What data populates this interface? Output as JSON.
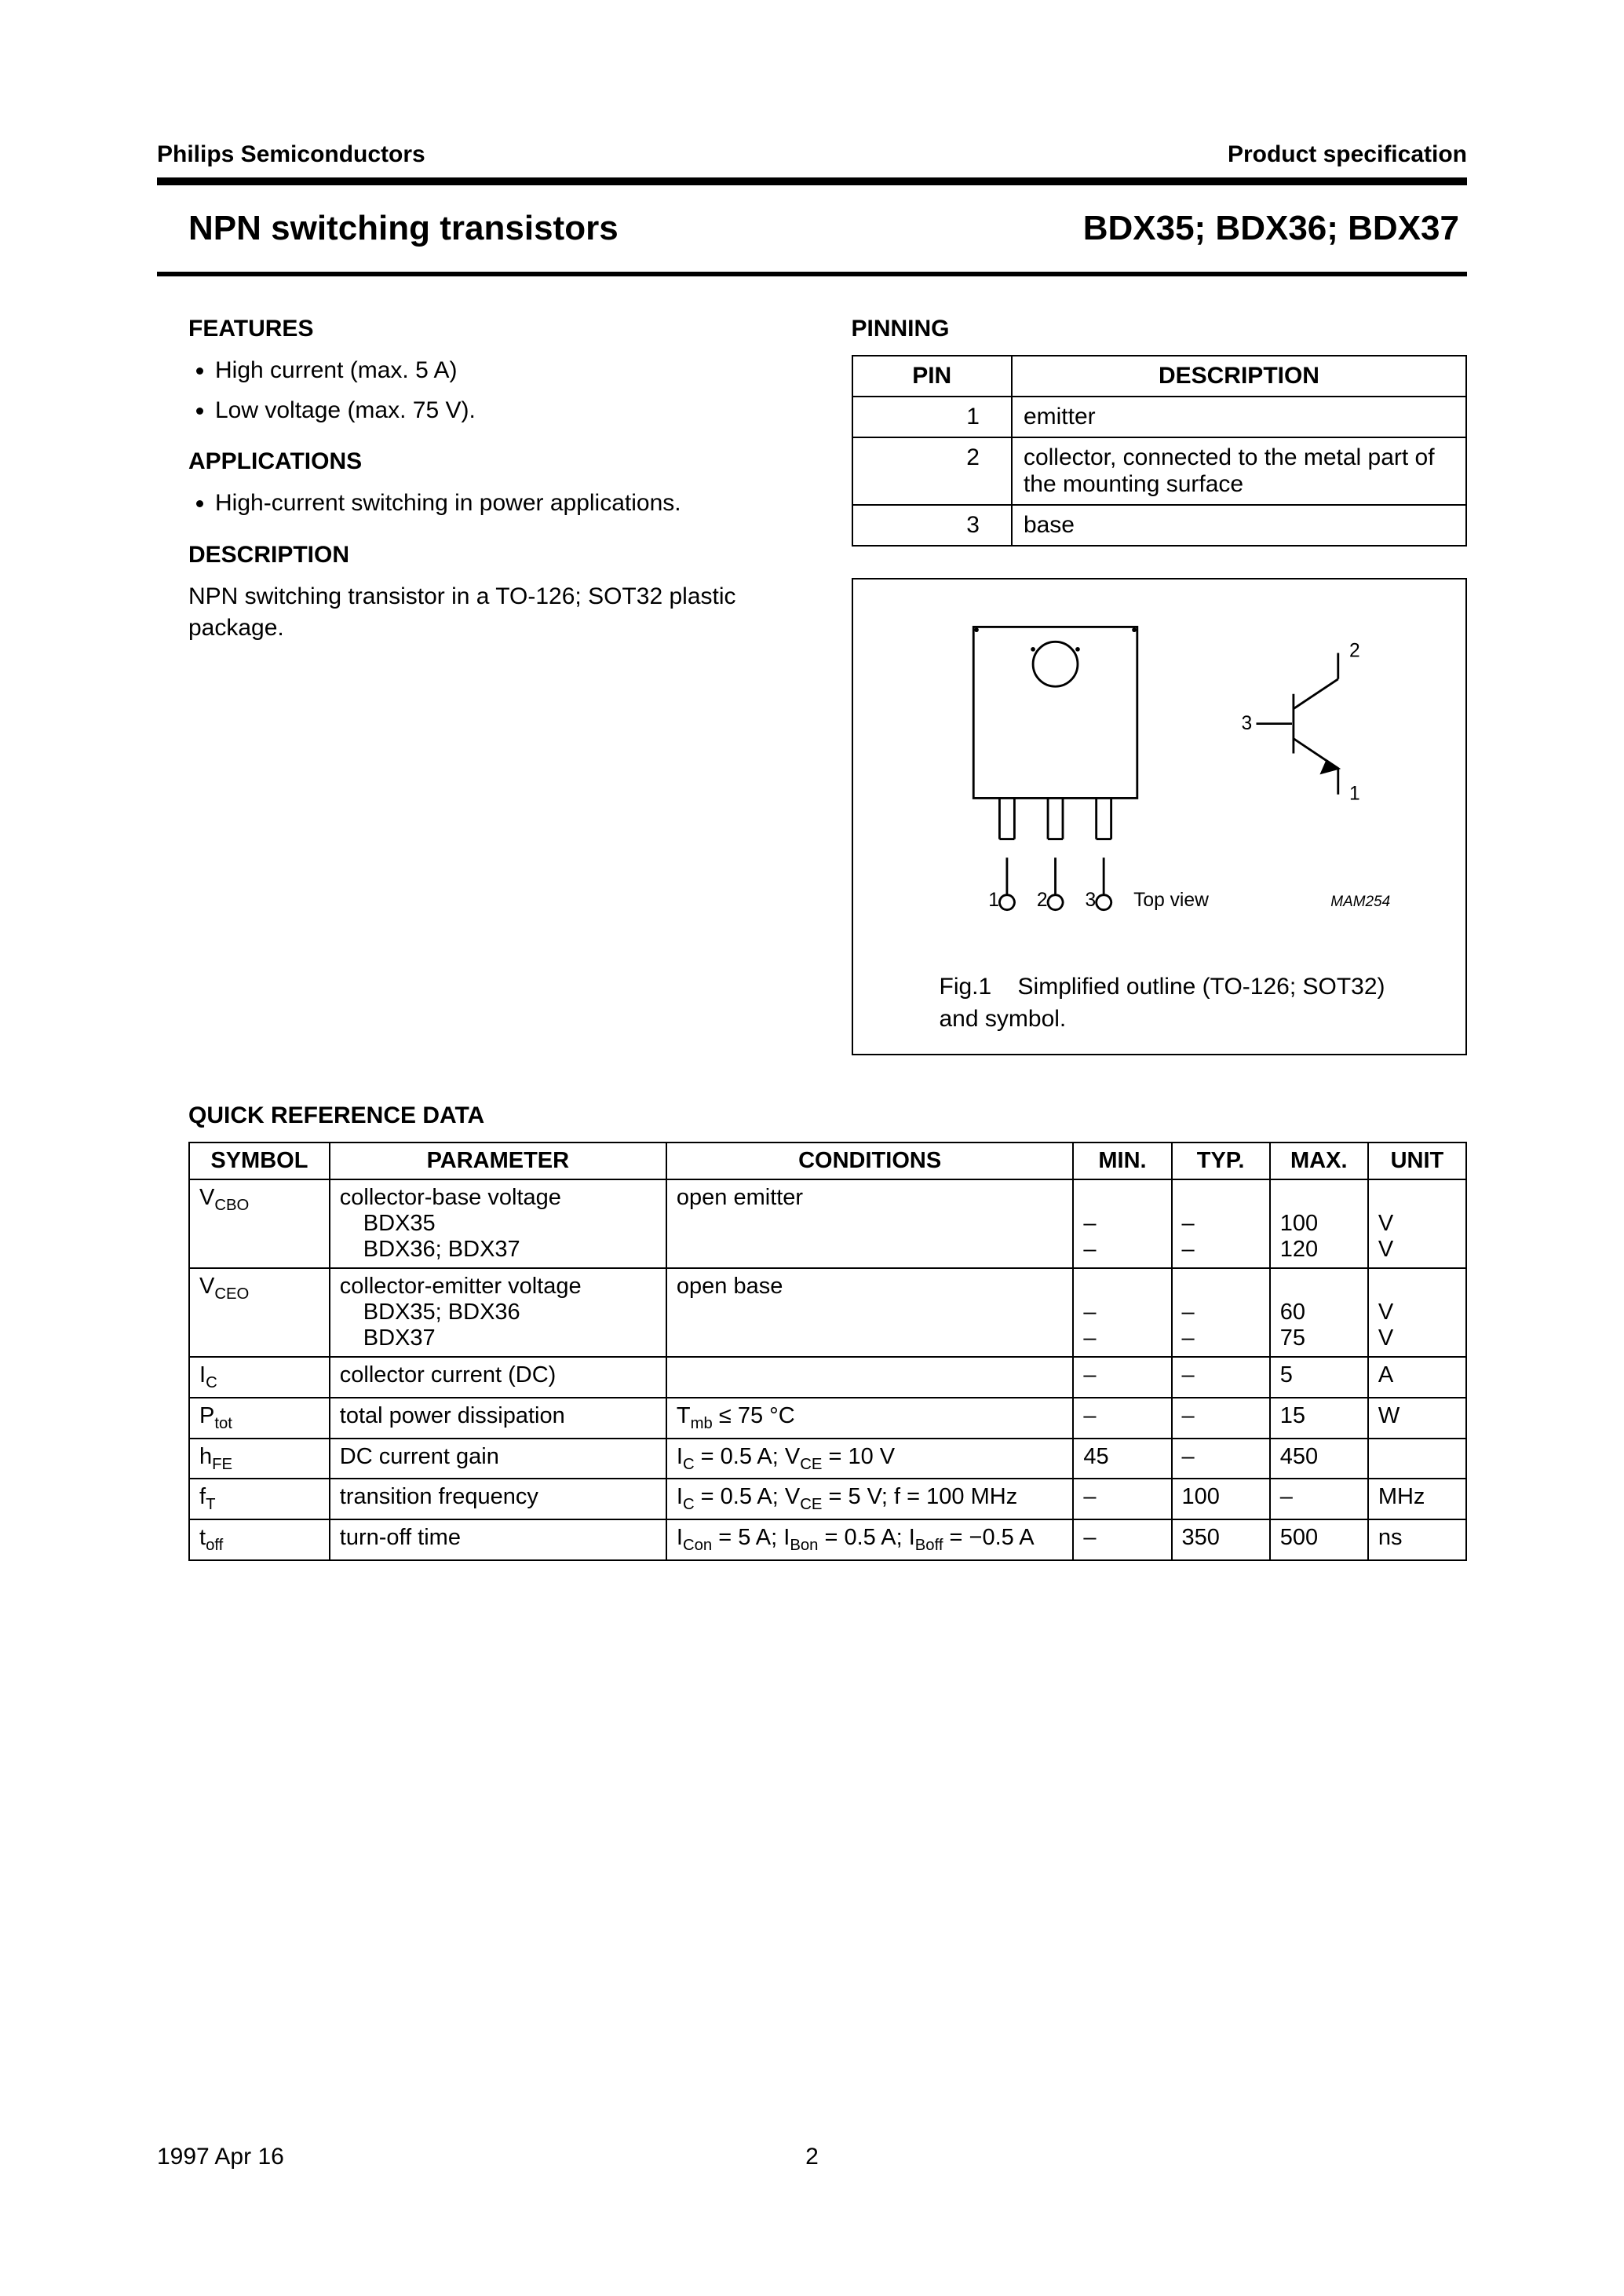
{
  "header": {
    "company": "Philips Semiconductors",
    "doc_type": "Product specification"
  },
  "title": {
    "left": "NPN switching transistors",
    "right": "BDX35; BDX36; BDX37"
  },
  "features": {
    "heading": "FEATURES",
    "items": [
      "High current (max. 5 A)",
      "Low voltage (max. 75 V)."
    ]
  },
  "applications": {
    "heading": "APPLICATIONS",
    "items": [
      "High-current switching in power applications."
    ]
  },
  "description": {
    "heading": "DESCRIPTION",
    "text": "NPN switching transistor in a TO-126; SOT32 plastic package."
  },
  "pinning": {
    "heading": "PINNING",
    "columns": [
      "PIN",
      "DESCRIPTION"
    ],
    "rows": [
      {
        "pin": "1",
        "desc": "emitter"
      },
      {
        "pin": "2",
        "desc": "collector, connected to the metal part of the mounting surface"
      },
      {
        "pin": "3",
        "desc": "base"
      }
    ]
  },
  "figure": {
    "pin_labels": [
      "1",
      "2",
      "3"
    ],
    "view_label": "Top view",
    "code": "MAM254",
    "caption_label": "Fig.1",
    "caption_text": "Simplified outline (TO-126; SOT32) and symbol.",
    "sym_labels": {
      "collector": "2",
      "base": "3",
      "emitter": "1"
    }
  },
  "quickref": {
    "heading": "QUICK REFERENCE DATA",
    "columns": [
      "SYMBOL",
      "PARAMETER",
      "CONDITIONS",
      "MIN.",
      "TYP.",
      "MAX.",
      "UNIT"
    ],
    "col_widths_pct": [
      10,
      24,
      29,
      7,
      7,
      7,
      7
    ],
    "rows": [
      {
        "symbol_html": "V<sub>CBO</sub>",
        "parameter_lines": [
          "collector-base voltage",
          "BDX35",
          "BDX36; BDX37"
        ],
        "conditions_html": "open emitter",
        "value_lines": [
          {
            "min": "",
            "typ": "",
            "max": "",
            "unit": ""
          },
          {
            "min": "–",
            "typ": "–",
            "max": "100",
            "unit": "V"
          },
          {
            "min": "–",
            "typ": "–",
            "max": "120",
            "unit": "V"
          }
        ]
      },
      {
        "symbol_html": "V<sub>CEO</sub>",
        "parameter_lines": [
          "collector-emitter voltage",
          "BDX35; BDX36",
          "BDX37"
        ],
        "conditions_html": "open base",
        "value_lines": [
          {
            "min": "",
            "typ": "",
            "max": "",
            "unit": ""
          },
          {
            "min": "–",
            "typ": "–",
            "max": "60",
            "unit": "V"
          },
          {
            "min": "–",
            "typ": "–",
            "max": "75",
            "unit": "V"
          }
        ]
      },
      {
        "symbol_html": "I<sub>C</sub>",
        "parameter_lines": [
          "collector current (DC)"
        ],
        "conditions_html": "",
        "value_lines": [
          {
            "min": "–",
            "typ": "–",
            "max": "5",
            "unit": "A"
          }
        ]
      },
      {
        "symbol_html": "P<sub>tot</sub>",
        "parameter_lines": [
          "total power dissipation"
        ],
        "conditions_html": "T<sub>mb</sub> ≤ 75 °C",
        "value_lines": [
          {
            "min": "–",
            "typ": "–",
            "max": "15",
            "unit": "W"
          }
        ]
      },
      {
        "symbol_html": "h<sub>FE</sub>",
        "parameter_lines": [
          "DC current gain"
        ],
        "conditions_html": "I<sub>C</sub> = 0.5 A; V<sub>CE</sub> = 10 V",
        "value_lines": [
          {
            "min": "45",
            "typ": "–",
            "max": "450",
            "unit": ""
          }
        ]
      },
      {
        "symbol_html": "f<sub>T</sub>",
        "parameter_lines": [
          "transition frequency"
        ],
        "conditions_html": "I<sub>C</sub> = 0.5 A; V<sub>CE</sub> = 5 V; f = 100 MHz",
        "value_lines": [
          {
            "min": "–",
            "typ": "100",
            "max": "–",
            "unit": "MHz"
          }
        ]
      },
      {
        "symbol_html": "t<sub>off</sub>",
        "parameter_lines": [
          "turn-off time"
        ],
        "conditions_html": "I<sub>Con</sub> = 5 A; I<sub>Bon</sub> = 0.5 A; I<sub>Boff</sub> = −0.5 A",
        "value_lines": [
          {
            "min": "–",
            "typ": "350",
            "max": "500",
            "unit": "ns"
          }
        ]
      }
    ]
  },
  "footer": {
    "date": "1997 Apr 16",
    "page": "2"
  },
  "colors": {
    "text": "#000000",
    "background": "#ffffff",
    "rule": "#000000",
    "border": "#000000"
  },
  "fonts": {
    "family": "Arial, Helvetica, sans-serif",
    "body_pt": 30,
    "heading_pt": 30,
    "title_pt": 44
  }
}
